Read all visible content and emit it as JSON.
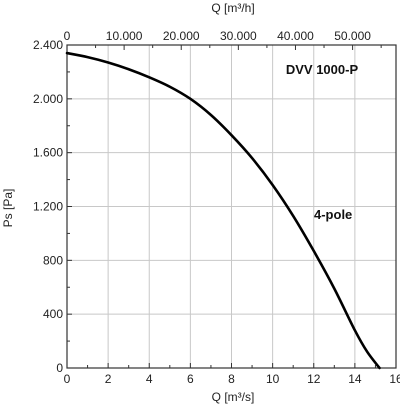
{
  "chart_data": {
    "type": "line",
    "x_bottom": {
      "label": "Q [m³/s]",
      "ticks": [
        0,
        2,
        4,
        6,
        8,
        10,
        12,
        14,
        16
      ],
      "tick_labels": [
        "0",
        "2",
        "4",
        "6",
        "8",
        "10",
        "12",
        "14",
        "16"
      ],
      "range": [
        0,
        16
      ]
    },
    "x_top": {
      "label": "Q [m³/h]",
      "ticks": [
        0,
        10000,
        20000,
        30000,
        40000,
        50000
      ],
      "tick_labels": [
        "0",
        "10.000",
        "20.000",
        "30.000",
        "40.000",
        "50.000"
      ],
      "range": [
        0,
        57600
      ]
    },
    "y": {
      "label": "Ps [Pa]",
      "ticks": [
        0,
        400,
        800,
        1200,
        1600,
        2000,
        2400
      ],
      "tick_labels": [
        "0",
        "400",
        "800",
        "1.200",
        "1.600",
        "2.000",
        "2.400"
      ],
      "range": [
        0,
        2400
      ],
      "minor_step": 200
    },
    "grid": true,
    "series": [
      {
        "name": "4-pole",
        "color": "#000000",
        "x": [
          0,
          1,
          2,
          3,
          4,
          5,
          6,
          7,
          8,
          9,
          10,
          11,
          12,
          13,
          14,
          14.6,
          15.2
        ],
        "y": [
          2340,
          2310,
          2270,
          2220,
          2160,
          2090,
          2000,
          1880,
          1730,
          1560,
          1360,
          1130,
          870,
          590,
          280,
          120,
          0
        ]
      }
    ],
    "annotations": [
      {
        "text": "DVV 1000-P"
      },
      {
        "text": "4-pole"
      }
    ]
  }
}
